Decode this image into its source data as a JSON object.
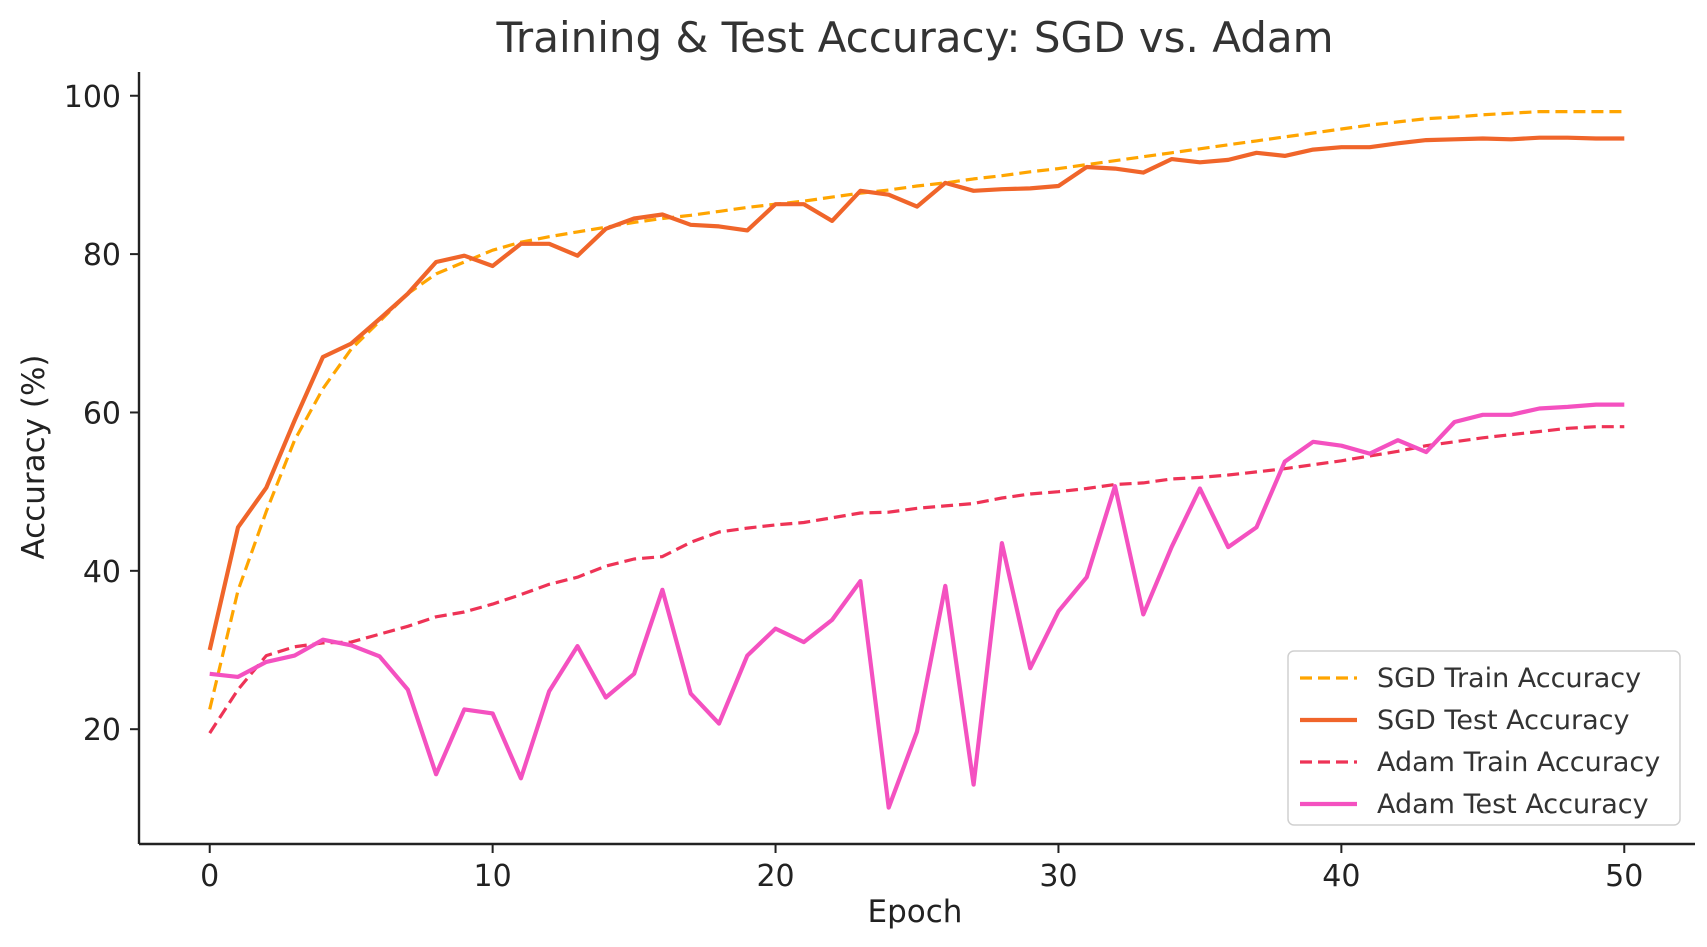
{
  "chart_data": {
    "type": "line",
    "title": "Training & Test Accuracy: SGD vs. Adam",
    "xlabel": "Epoch",
    "ylabel": "Accuracy (%)",
    "xlim": [
      -2.5,
      52.5
    ],
    "ylim": [
      5.5,
      103
    ],
    "xticks": [
      0,
      10,
      20,
      30,
      40,
      50
    ],
    "yticks": [
      20,
      40,
      60,
      80,
      100
    ],
    "xtick_labels": [
      "0",
      "10",
      "20",
      "30",
      "40",
      "50"
    ],
    "ytick_labels": [
      "20",
      "40",
      "60",
      "80",
      "100"
    ],
    "grid": false,
    "legend_position": "lower-right",
    "x": [
      0,
      1,
      2,
      3,
      4,
      5,
      6,
      7,
      8,
      9,
      10,
      11,
      12,
      13,
      14,
      15,
      16,
      17,
      18,
      19,
      20,
      21,
      22,
      23,
      24,
      25,
      26,
      27,
      28,
      29,
      30,
      31,
      32,
      33,
      34,
      35,
      36,
      37,
      38,
      39,
      40,
      41,
      42,
      43,
      44,
      45,
      46,
      47,
      48,
      49,
      50
    ],
    "series": [
      {
        "name": "SGD Train Accuracy",
        "color": "#FFA500",
        "style": "dashed",
        "values": [
          22.5,
          37.5,
          47.5,
          56.5,
          63,
          68,
          71.5,
          75,
          77.5,
          79,
          80.5,
          81.5,
          82.2,
          82.8,
          83.4,
          84,
          84.5,
          84.9,
          85.4,
          85.9,
          86.3,
          86.7,
          87.2,
          87.7,
          88.1,
          88.6,
          89,
          89.5,
          89.9,
          90.4,
          90.8,
          91.3,
          91.8,
          92.3,
          92.8,
          93.3,
          93.8,
          94.3,
          94.8,
          95.3,
          95.8,
          96.3,
          96.7,
          97.1,
          97.3,
          97.6,
          97.8,
          98,
          98,
          98,
          98
        ]
      },
      {
        "name": "SGD Test Accuracy",
        "color": "#F0652A",
        "style": "solid",
        "values": [
          30,
          45.5,
          50.5,
          59,
          67,
          68.7,
          71.8,
          75,
          79,
          79.8,
          78.5,
          81.3,
          81.3,
          79.8,
          83.2,
          84.5,
          85,
          83.7,
          83.5,
          83,
          86.3,
          86.3,
          84.2,
          88,
          87.5,
          86,
          89,
          88,
          88.2,
          88.3,
          88.6,
          91,
          90.8,
          90.3,
          92,
          91.6,
          91.9,
          92.8,
          92.4,
          93.2,
          93.5,
          93.5,
          94,
          94.4,
          94.5,
          94.6,
          94.5,
          94.7,
          94.7,
          94.6,
          94.6
        ]
      },
      {
        "name": "Adam Train Accuracy",
        "color": "#EE3356",
        "style": "dashed",
        "values": [
          19.5,
          25,
          29.3,
          30.4,
          30.9,
          31,
          32,
          33,
          34.2,
          34.8,
          35.8,
          37,
          38.3,
          39.2,
          40.6,
          41.5,
          41.8,
          43.6,
          44.9,
          45.4,
          45.8,
          46.1,
          46.7,
          47.3,
          47.4,
          47.9,
          48.2,
          48.5,
          49.2,
          49.7,
          50,
          50.4,
          50.9,
          51.1,
          51.6,
          51.8,
          52.1,
          52.5,
          52.9,
          53.4,
          53.9,
          54.5,
          55.1,
          55.8,
          56.3,
          56.8,
          57.2,
          57.6,
          58,
          58.2,
          58.2
        ]
      },
      {
        "name": "Adam Test Accuracy",
        "color": "#F451C0",
        "style": "solid",
        "values": [
          27,
          26.6,
          28.5,
          29.3,
          31.3,
          30.6,
          29.2,
          25,
          14.3,
          22.5,
          22,
          13.8,
          24.8,
          30.5,
          24,
          27,
          37.6,
          24.5,
          20.7,
          29.3,
          32.7,
          31,
          33.8,
          38.7,
          10.1,
          19.7,
          38.1,
          13,
          43.5,
          27.7,
          34.9,
          39.2,
          50.7,
          34.5,
          43,
          50.4,
          43,
          45.5,
          53.8,
          56.3,
          55.8,
          54.8,
          56.5,
          55,
          58.8,
          59.7,
          59.7,
          60.5,
          60.7,
          61,
          61
        ]
      }
    ]
  }
}
